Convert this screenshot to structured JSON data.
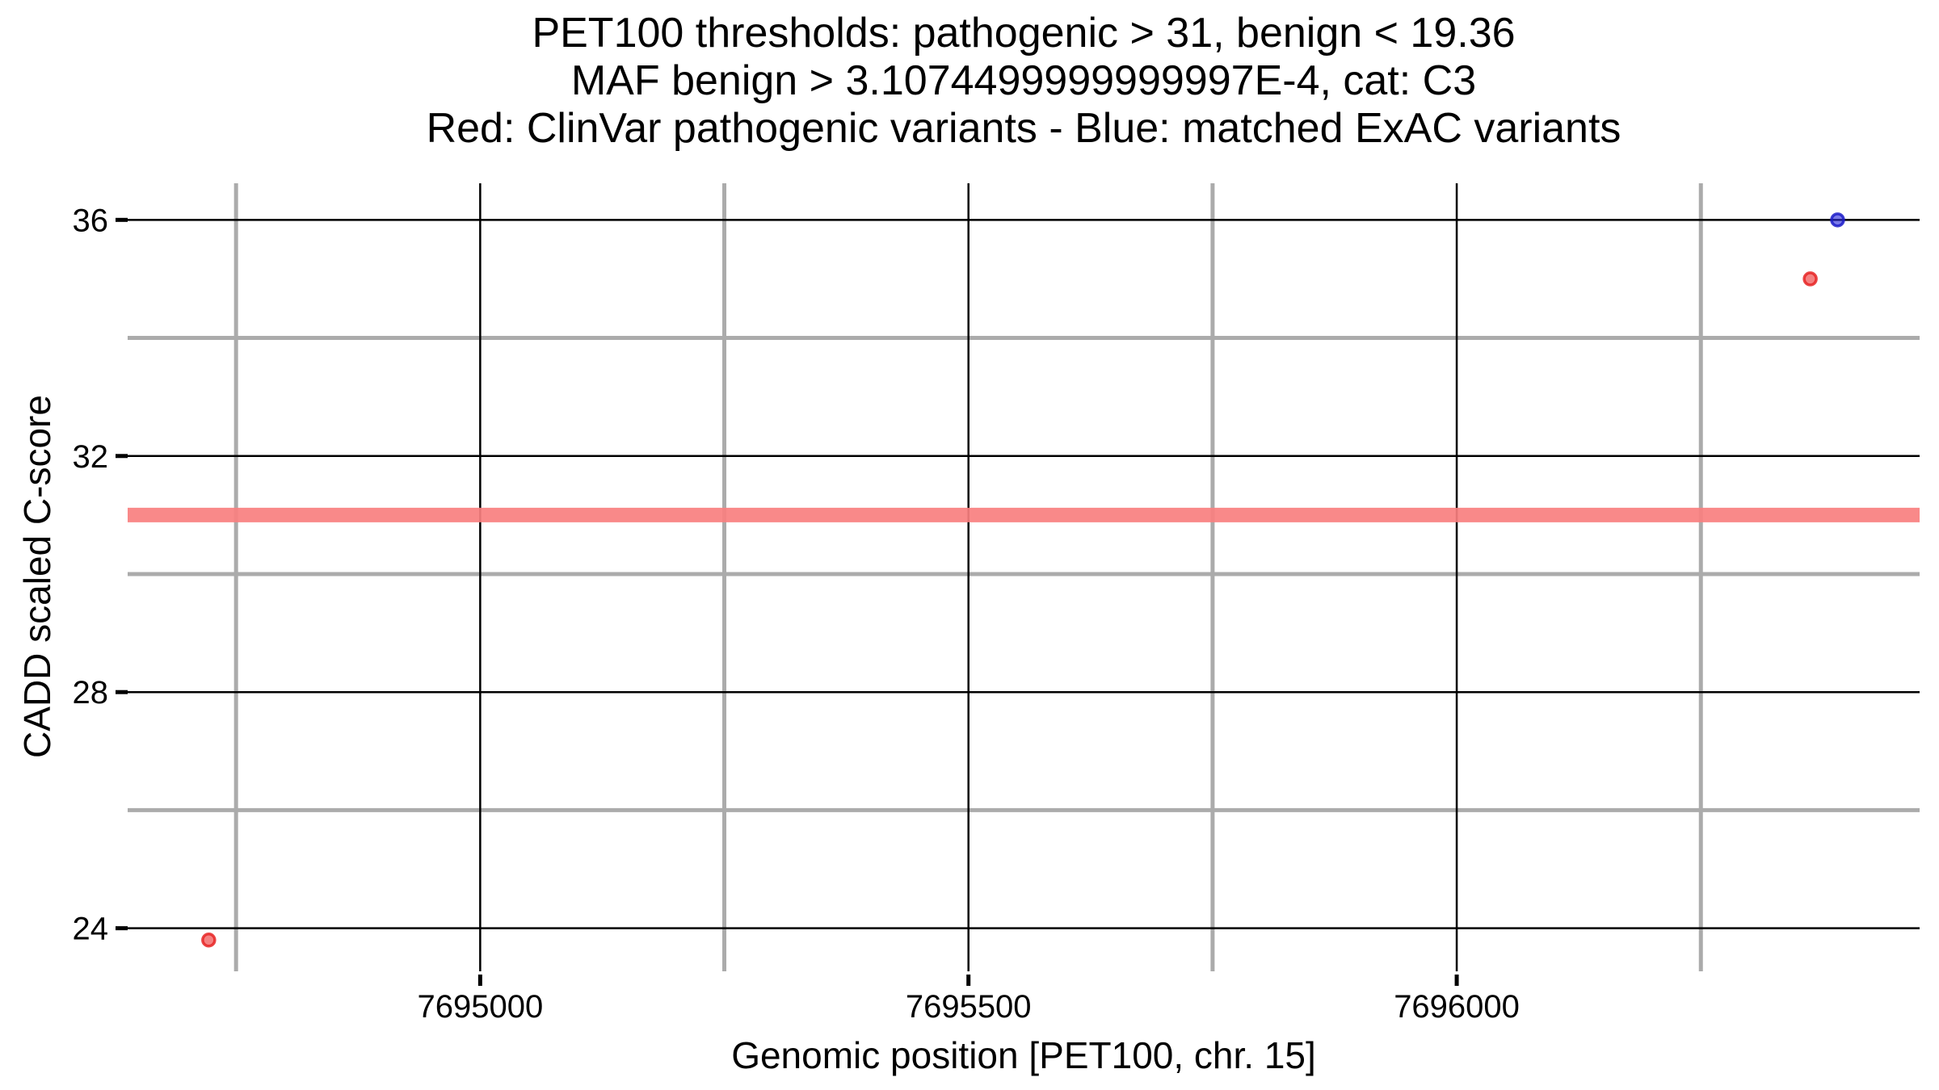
{
  "title": {
    "line1": "PET100 thresholds: pathogenic > 31, benign < 19.36",
    "line2": "MAF benign > 3.1074499999999997E-4, cat: C3",
    "line3": "Red: ClinVar pathogenic variants - Blue: matched ExAC variants"
  },
  "chart_data": {
    "type": "scatter",
    "title": "PET100 thresholds: pathogenic > 31, benign < 19.36 | MAF benign > 3.1074499999999997E-4, cat: C3 | Red: ClinVar pathogenic variants - Blue: matched ExAC variants",
    "xlabel": "Genomic position [PET100, chr. 15]",
    "ylabel": "CADD scaled C-score",
    "xlim": [
      7694639,
      7696474
    ],
    "ylim": [
      23.27,
      36.62
    ],
    "x_ticks": [
      7695000,
      7695500,
      7696000
    ],
    "x_tick_labels": [
      "7695000",
      "7695500",
      "7696000"
    ],
    "x_minor_gridlines": [
      7694750,
      7695250,
      7695750,
      7696250
    ],
    "y_ticks": [
      24,
      28,
      32,
      36
    ],
    "y_tick_labels": [
      "24",
      "28",
      "32",
      "36"
    ],
    "y_minor_gridlines": [
      26,
      30,
      34
    ],
    "grid": true,
    "legend_position": "none",
    "threshold_line": {
      "y": 31,
      "meaning": "pathogenic threshold",
      "color": "#F87F7F"
    },
    "series": [
      {
        "name": "ClinVar pathogenic variants",
        "color_fill": "rgba(238,52,52,0.62)",
        "color_stroke": "rgba(230,35,35,0.85)",
        "points": [
          {
            "x": 7694722,
            "y": 23.8
          },
          {
            "x": 7696362,
            "y": 35.0
          }
        ]
      },
      {
        "name": "matched ExAC variants",
        "color_fill": "rgba(40,40,219,0.62)",
        "color_stroke": "rgba(28,28,200,0.85)",
        "points": [
          {
            "x": 7696390,
            "y": 36.0
          }
        ]
      }
    ],
    "colors": {
      "major_gridline": "#000000",
      "minor_gridline": "#ABABAB",
      "background": "#FFFFFF"
    }
  }
}
